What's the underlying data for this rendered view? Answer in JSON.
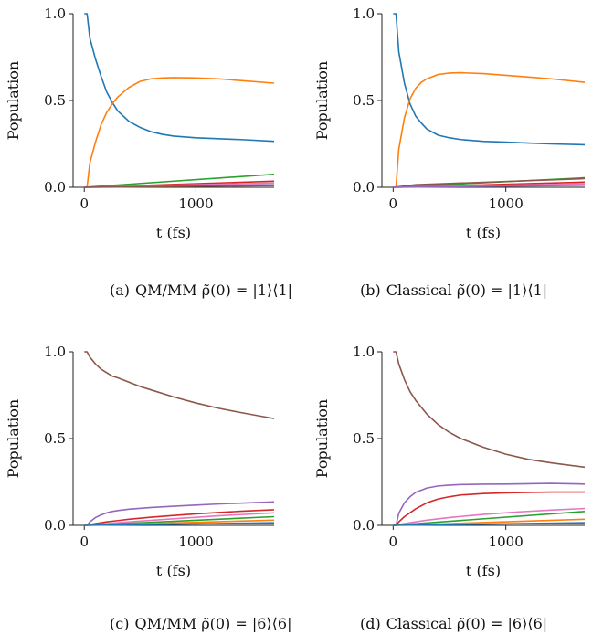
{
  "chart_data": [
    {
      "type": "line",
      "panel": "a",
      "caption_letter": "(a)",
      "caption_text": "QM/MM ρ̃(0) = |1⟩⟨1|",
      "xlabel": "t (fs)",
      "ylabel": "Population",
      "xlim": [
        -100,
        1700
      ],
      "ylim": [
        0,
        1.0
      ],
      "xticks": [
        0,
        1000
      ],
      "yticks": [
        0.0,
        0.5,
        1.0
      ],
      "ytick_labels": [
        "0.0",
        "0.5",
        "1.0"
      ],
      "xtick_labels": [
        "0",
        "1000"
      ],
      "series": [
        {
          "color": "#1f77b4",
          "x": [
            0,
            25,
            50,
            100,
            150,
            200,
            250,
            300,
            400,
            500,
            600,
            700,
            800,
            1000,
            1200,
            1400,
            1700
          ],
          "y": [
            1.0,
            1.0,
            0.86,
            0.74,
            0.64,
            0.55,
            0.49,
            0.44,
            0.38,
            0.345,
            0.32,
            0.305,
            0.295,
            0.285,
            0.28,
            0.275,
            0.265
          ]
        },
        {
          "color": "#ff7f0e",
          "x": [
            0,
            25,
            50,
            100,
            150,
            200,
            250,
            300,
            400,
            500,
            600,
            700,
            800,
            1000,
            1200,
            1400,
            1700
          ],
          "y": [
            0.0,
            0.0,
            0.14,
            0.26,
            0.36,
            0.43,
            0.48,
            0.52,
            0.575,
            0.61,
            0.625,
            0.63,
            0.632,
            0.63,
            0.625,
            0.615,
            0.6
          ]
        },
        {
          "color": "#2ca02c",
          "x": [
            0,
            1700
          ],
          "y": [
            0.0,
            0.075
          ]
        },
        {
          "color": "#d62728",
          "x": [
            0,
            1700
          ],
          "y": [
            0.0,
            0.035
          ]
        },
        {
          "color": "#e377c2",
          "x": [
            0,
            1700
          ],
          "y": [
            0.0,
            0.025
          ]
        },
        {
          "color": "#9467bd",
          "x": [
            0,
            1700
          ],
          "y": [
            0.0,
            0.015
          ]
        },
        {
          "color": "#8c564b",
          "x": [
            0,
            1700
          ],
          "y": [
            0.0,
            0.01
          ]
        }
      ]
    },
    {
      "type": "line",
      "panel": "b",
      "caption_letter": "(b)",
      "caption_text": "Classical ρ̃(0) = |1⟩⟨1|",
      "xlabel": "t (fs)",
      "ylabel": "Population",
      "xlim": [
        -100,
        1700
      ],
      "ylim": [
        0,
        1.0
      ],
      "xticks": [
        0,
        1000
      ],
      "yticks": [
        0.0,
        0.5,
        1.0
      ],
      "ytick_labels": [
        "0.0",
        "0.5",
        "1.0"
      ],
      "xtick_labels": [
        "0",
        "1000"
      ],
      "series": [
        {
          "color": "#1f77b4",
          "x": [
            0,
            25,
            50,
            100,
            150,
            200,
            250,
            300,
            400,
            500,
            600,
            800,
            1000,
            1200,
            1400,
            1700
          ],
          "y": [
            1.0,
            1.0,
            0.78,
            0.6,
            0.48,
            0.41,
            0.37,
            0.335,
            0.3,
            0.285,
            0.275,
            0.265,
            0.26,
            0.255,
            0.25,
            0.245
          ]
        },
        {
          "color": "#ff7f0e",
          "x": [
            0,
            25,
            50,
            100,
            150,
            200,
            250,
            300,
            400,
            500,
            600,
            800,
            1000,
            1200,
            1400,
            1700
          ],
          "y": [
            0.0,
            0.0,
            0.22,
            0.4,
            0.51,
            0.57,
            0.605,
            0.625,
            0.65,
            0.658,
            0.66,
            0.655,
            0.645,
            0.635,
            0.625,
            0.605
          ]
        },
        {
          "color": "#2ca02c",
          "x": [
            0,
            1700
          ],
          "y": [
            0.0,
            0.055
          ]
        },
        {
          "color": "#8c564b",
          "x": [
            0,
            200,
            1700
          ],
          "y": [
            0.0,
            0.015,
            0.05
          ]
        },
        {
          "color": "#d62728",
          "x": [
            0,
            1700
          ],
          "y": [
            0.0,
            0.03
          ]
        },
        {
          "color": "#e377c2",
          "x": [
            0,
            1700
          ],
          "y": [
            0.0,
            0.02
          ]
        },
        {
          "color": "#9467bd",
          "x": [
            0,
            1700
          ],
          "y": [
            0.0,
            0.012
          ]
        }
      ]
    },
    {
      "type": "line",
      "panel": "c",
      "caption_letter": "(c)",
      "caption_text": "QM/MM ρ̃(0) = |6⟩⟨6|",
      "xlabel": "t (fs)",
      "ylabel": "Population",
      "xlim": [
        -100,
        1700
      ],
      "ylim": [
        0,
        1.0
      ],
      "xticks": [
        0,
        1000
      ],
      "yticks": [
        0.0,
        0.5,
        1.0
      ],
      "ytick_labels": [
        "0.0",
        "0.5",
        "1.0"
      ],
      "xtick_labels": [
        "0",
        "1000"
      ],
      "series": [
        {
          "color": "#8c564b",
          "x": [
            0,
            25,
            50,
            100,
            150,
            200,
            250,
            300,
            400,
            500,
            600,
            800,
            1000,
            1200,
            1400,
            1700
          ],
          "y": [
            1.0,
            1.0,
            0.97,
            0.93,
            0.9,
            0.88,
            0.86,
            0.85,
            0.825,
            0.8,
            0.78,
            0.74,
            0.705,
            0.675,
            0.65,
            0.615
          ]
        },
        {
          "color": "#9467bd",
          "x": [
            0,
            25,
            50,
            100,
            150,
            200,
            250,
            300,
            400,
            600,
            800,
            1000,
            1200,
            1400,
            1700
          ],
          "y": [
            0.0,
            0.0,
            0.02,
            0.045,
            0.06,
            0.072,
            0.08,
            0.085,
            0.093,
            0.103,
            0.11,
            0.117,
            0.123,
            0.128,
            0.135
          ]
        },
        {
          "color": "#d62728",
          "x": [
            0,
            50,
            200,
            400,
            600,
            800,
            1000,
            1200,
            1400,
            1700
          ],
          "y": [
            0.0,
            0.005,
            0.02,
            0.035,
            0.047,
            0.057,
            0.066,
            0.074,
            0.081,
            0.09
          ]
        },
        {
          "color": "#e377c2",
          "x": [
            0,
            50,
            400,
            800,
            1200,
            1700
          ],
          "y": [
            0.0,
            0.003,
            0.02,
            0.038,
            0.055,
            0.072
          ]
        },
        {
          "color": "#2ca02c",
          "x": [
            0,
            1700
          ],
          "y": [
            0.0,
            0.05
          ]
        },
        {
          "color": "#ff7f0e",
          "x": [
            0,
            1700
          ],
          "y": [
            0.0,
            0.03
          ]
        },
        {
          "color": "#1f77b4",
          "x": [
            0,
            1700
          ],
          "y": [
            0.0,
            0.015
          ]
        }
      ]
    },
    {
      "type": "line",
      "panel": "d",
      "caption_letter": "(d)",
      "caption_text": "Classical ρ̃(0) = |6⟩⟨6|",
      "xlabel": "t (fs)",
      "ylabel": "Population",
      "xlim": [
        -100,
        1700
      ],
      "ylim": [
        0,
        1.0
      ],
      "xticks": [
        0,
        1000
      ],
      "yticks": [
        0.0,
        0.5,
        1.0
      ],
      "ytick_labels": [
        "0.0",
        "0.5",
        "1.0"
      ],
      "xtick_labels": [
        "0",
        "1000"
      ],
      "series": [
        {
          "color": "#8c564b",
          "x": [
            0,
            25,
            50,
            100,
            150,
            200,
            300,
            400,
            500,
            600,
            800,
            1000,
            1200,
            1400,
            1700
          ],
          "y": [
            1.0,
            1.0,
            0.93,
            0.84,
            0.77,
            0.72,
            0.64,
            0.58,
            0.535,
            0.5,
            0.45,
            0.41,
            0.38,
            0.36,
            0.335
          ]
        },
        {
          "color": "#9467bd",
          "x": [
            0,
            25,
            50,
            100,
            150,
            200,
            300,
            400,
            500,
            600,
            800,
            1000,
            1200,
            1400,
            1700
          ],
          "y": [
            0.0,
            0.0,
            0.07,
            0.13,
            0.165,
            0.19,
            0.215,
            0.227,
            0.232,
            0.235,
            0.237,
            0.238,
            0.24,
            0.242,
            0.238
          ]
        },
        {
          "color": "#d62728",
          "x": [
            0,
            25,
            50,
            100,
            200,
            300,
            400,
            500,
            600,
            800,
            1000,
            1200,
            1400,
            1700
          ],
          "y": [
            0.0,
            0.0,
            0.02,
            0.05,
            0.095,
            0.13,
            0.152,
            0.165,
            0.175,
            0.183,
            0.187,
            0.19,
            0.192,
            0.192
          ]
        },
        {
          "color": "#e377c2",
          "x": [
            0,
            100,
            300,
            500,
            800,
            1100,
            1400,
            1700
          ],
          "y": [
            0.0,
            0.01,
            0.03,
            0.045,
            0.063,
            0.077,
            0.088,
            0.097
          ]
        },
        {
          "color": "#2ca02c",
          "x": [
            0,
            1700
          ],
          "y": [
            0.0,
            0.08
          ]
        },
        {
          "color": "#ff7f0e",
          "x": [
            0,
            1700
          ],
          "y": [
            0.0,
            0.035
          ]
        },
        {
          "color": "#1f77b4",
          "x": [
            0,
            1700
          ],
          "y": [
            0.0,
            0.015
          ]
        }
      ]
    }
  ]
}
